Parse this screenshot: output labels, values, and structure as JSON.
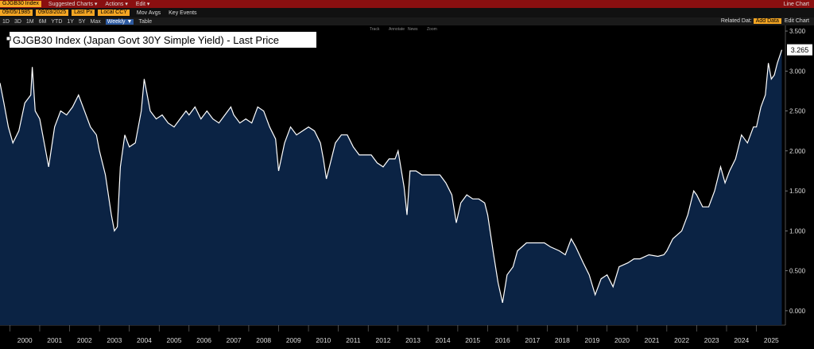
{
  "toolbar": {
    "ticker": "GJGB30 Index",
    "menus": [
      "Suggested Charts ▾",
      "Actions ▾",
      "Edit ▾"
    ],
    "chart_kind": "Line Chart",
    "start_date": "09/05/1985",
    "end_date": "09/03/2025",
    "field": "Last Px",
    "currency": "Local CCY",
    "options": [
      "Mov Avgs",
      "Key Events"
    ],
    "ranges": [
      "1D",
      "3D",
      "1M",
      "6M",
      "YTD",
      "1Y",
      "5Y",
      "Max"
    ],
    "frequency": "Weekly ▼",
    "table": "Table",
    "related_label": "Related Dat:",
    "related_value": "Add Data",
    "edit_chart": "Edit Chart",
    "tools": [
      "Track",
      "Annotate",
      "News",
      "Zoom"
    ]
  },
  "chart_data": {
    "type": "line",
    "series": [
      {
        "name": "GJGB30 Index (Japan Govt 30Y Simple Yield) - Last Price",
        "color": "#ffffff",
        "x": [
          1999.67,
          1999.8,
          1999.95,
          2000.1,
          2000.3,
          2000.5,
          2000.7,
          2000.75,
          2000.85,
          2001.0,
          2001.2,
          2001.3,
          2001.5,
          2001.7,
          2001.9,
          2002.1,
          2002.3,
          2002.5,
          2002.7,
          2002.9,
          2003.0,
          2003.2,
          2003.4,
          2003.5,
          2003.6,
          2003.7,
          2003.85,
          2004.0,
          2004.2,
          2004.4,
          2004.5,
          2004.7,
          2004.9,
          2005.1,
          2005.3,
          2005.5,
          2005.7,
          2005.9,
          2006.0,
          2006.2,
          2006.4,
          2006.6,
          2006.8,
          2007.0,
          2007.2,
          2007.4,
          2007.5,
          2007.7,
          2007.9,
          2008.1,
          2008.3,
          2008.5,
          2008.7,
          2008.9,
          2009.0,
          2009.2,
          2009.4,
          2009.6,
          2009.8,
          2010.0,
          2010.2,
          2010.4,
          2010.5,
          2010.6,
          2010.7,
          2010.9,
          2011.1,
          2011.3,
          2011.5,
          2011.7,
          2011.9,
          2012.1,
          2012.3,
          2012.5,
          2012.7,
          2012.9,
          2013.0,
          2013.2,
          2013.3,
          2013.4,
          2013.6,
          2013.8,
          2014.0,
          2014.2,
          2014.4,
          2014.6,
          2014.8,
          2014.95,
          2015.1,
          2015.3,
          2015.5,
          2015.7,
          2015.9,
          2016.0,
          2016.2,
          2016.35,
          2016.5,
          2016.65,
          2016.85,
          2017.0,
          2017.3,
          2017.6,
          2017.9,
          2018.1,
          2018.4,
          2018.6,
          2018.8,
          2018.95,
          2019.2,
          2019.4,
          2019.6,
          2019.8,
          2020.0,
          2020.2,
          2020.4,
          2020.7,
          2020.9,
          2021.1,
          2021.4,
          2021.7,
          2021.9,
          2022.0,
          2022.2,
          2022.5,
          2022.7,
          2022.9,
          2023.0,
          2023.2,
          2023.4,
          2023.6,
          2023.8,
          2023.95,
          2024.1,
          2024.3,
          2024.5,
          2024.7,
          2024.9,
          2025.0,
          2025.15,
          2025.3,
          2025.4,
          2025.5,
          2025.6,
          2025.7,
          2025.85
        ],
        "values": [
          2.85,
          2.6,
          2.3,
          2.1,
          2.25,
          2.6,
          2.7,
          3.05,
          2.5,
          2.4,
          2.0,
          1.8,
          2.3,
          2.5,
          2.45,
          2.55,
          2.7,
          2.5,
          2.3,
          2.2,
          2.0,
          1.7,
          1.2,
          1.0,
          1.05,
          1.8,
          2.2,
          2.05,
          2.1,
          2.5,
          2.9,
          2.5,
          2.4,
          2.45,
          2.35,
          2.3,
          2.4,
          2.5,
          2.45,
          2.55,
          2.4,
          2.5,
          2.4,
          2.35,
          2.45,
          2.55,
          2.45,
          2.35,
          2.4,
          2.35,
          2.55,
          2.5,
          2.3,
          2.15,
          1.75,
          2.1,
          2.3,
          2.2,
          2.25,
          2.3,
          2.25,
          2.1,
          1.9,
          1.65,
          1.8,
          2.1,
          2.2,
          2.2,
          2.05,
          1.95,
          1.95,
          1.95,
          1.85,
          1.8,
          1.9,
          1.9,
          2.0,
          1.55,
          1.2,
          1.75,
          1.75,
          1.7,
          1.7,
          1.7,
          1.7,
          1.6,
          1.45,
          1.1,
          1.35,
          1.45,
          1.4,
          1.4,
          1.35,
          1.2,
          0.7,
          0.35,
          0.1,
          0.45,
          0.55,
          0.75,
          0.85,
          0.85,
          0.85,
          0.8,
          0.75,
          0.7,
          0.9,
          0.8,
          0.6,
          0.45,
          0.2,
          0.4,
          0.45,
          0.3,
          0.55,
          0.6,
          0.65,
          0.65,
          0.7,
          0.68,
          0.7,
          0.75,
          0.9,
          1.0,
          1.2,
          1.5,
          1.45,
          1.3,
          1.3,
          1.5,
          1.8,
          1.6,
          1.75,
          1.9,
          2.2,
          2.1,
          2.3,
          2.3,
          2.55,
          2.7,
          3.1,
          2.9,
          2.95,
          3.1,
          3.265
        ]
      }
    ],
    "area_color": "#0b2344",
    "xlim": [
      1999.67,
      2025.97
    ],
    "xticks": [
      2000,
      2001,
      2002,
      2003,
      2004,
      2005,
      2006,
      2007,
      2008,
      2009,
      2010,
      2011,
      2012,
      2013,
      2014,
      2015,
      2016,
      2017,
      2018,
      2019,
      2020,
      2021,
      2022,
      2023,
      2024,
      2025
    ],
    "ylim": [
      -0.18,
      3.57
    ],
    "yticks": [
      {
        "value": 0,
        "label": "0.000"
      },
      {
        "value": 0.5,
        "label": "0.500"
      },
      {
        "value": 1,
        "label": "1.000"
      },
      {
        "value": 1.5,
        "label": "1.500"
      },
      {
        "value": 2,
        "label": "2.000"
      },
      {
        "value": 2.5,
        "label": "2.500"
      },
      {
        "value": 3,
        "label": "3.000"
      },
      {
        "value": 3.5,
        "label": "3.500"
      }
    ]
  }
}
